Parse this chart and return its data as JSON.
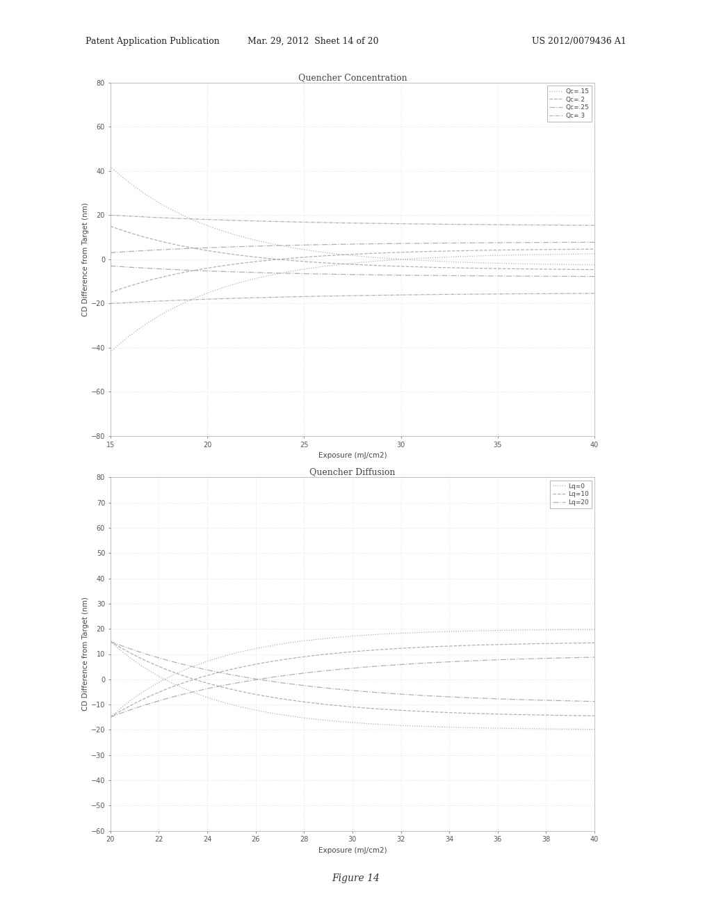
{
  "top_title": "Quencher Concentration",
  "bottom_title": "Quencher Diffusion",
  "xlabel": "Exposure (mJ/cm2)",
  "ylabel": "CD Difference from Target (nm)",
  "top": {
    "xlim": [
      15,
      40
    ],
    "ylim": [
      -80,
      80
    ],
    "xticks": [
      15,
      20,
      25,
      30,
      35,
      40
    ],
    "yticks": [
      -80,
      -60,
      -40,
      -20,
      0,
      20,
      40,
      60,
      80
    ],
    "legend_labels": [
      "Qc=.15",
      "Qc=.2",
      "Qc=.25",
      "Qc=.3"
    ]
  },
  "bottom": {
    "xlim": [
      20,
      40
    ],
    "ylim": [
      -60,
      80
    ],
    "xticks": [
      20,
      22,
      24,
      26,
      28,
      30,
      32,
      34,
      36,
      38,
      40
    ],
    "yticks": [
      -60,
      -50,
      -40,
      -30,
      -20,
      -10,
      0,
      10,
      20,
      30,
      40,
      50,
      60,
      70,
      80
    ],
    "legend_labels": [
      "Lq=0",
      "Lq=10",
      "Lq=20"
    ]
  },
  "figure_label": "Figure 14",
  "page_header_left": "Patent Application Publication",
  "page_header_mid": "Mar. 29, 2012  Sheet 14 of 20",
  "page_header_right": "US 2012/0079436 A1",
  "bg_color": "#ffffff",
  "line_color": "#b0b0b0",
  "text_color": "#444444",
  "grid_color": "#cccccc"
}
